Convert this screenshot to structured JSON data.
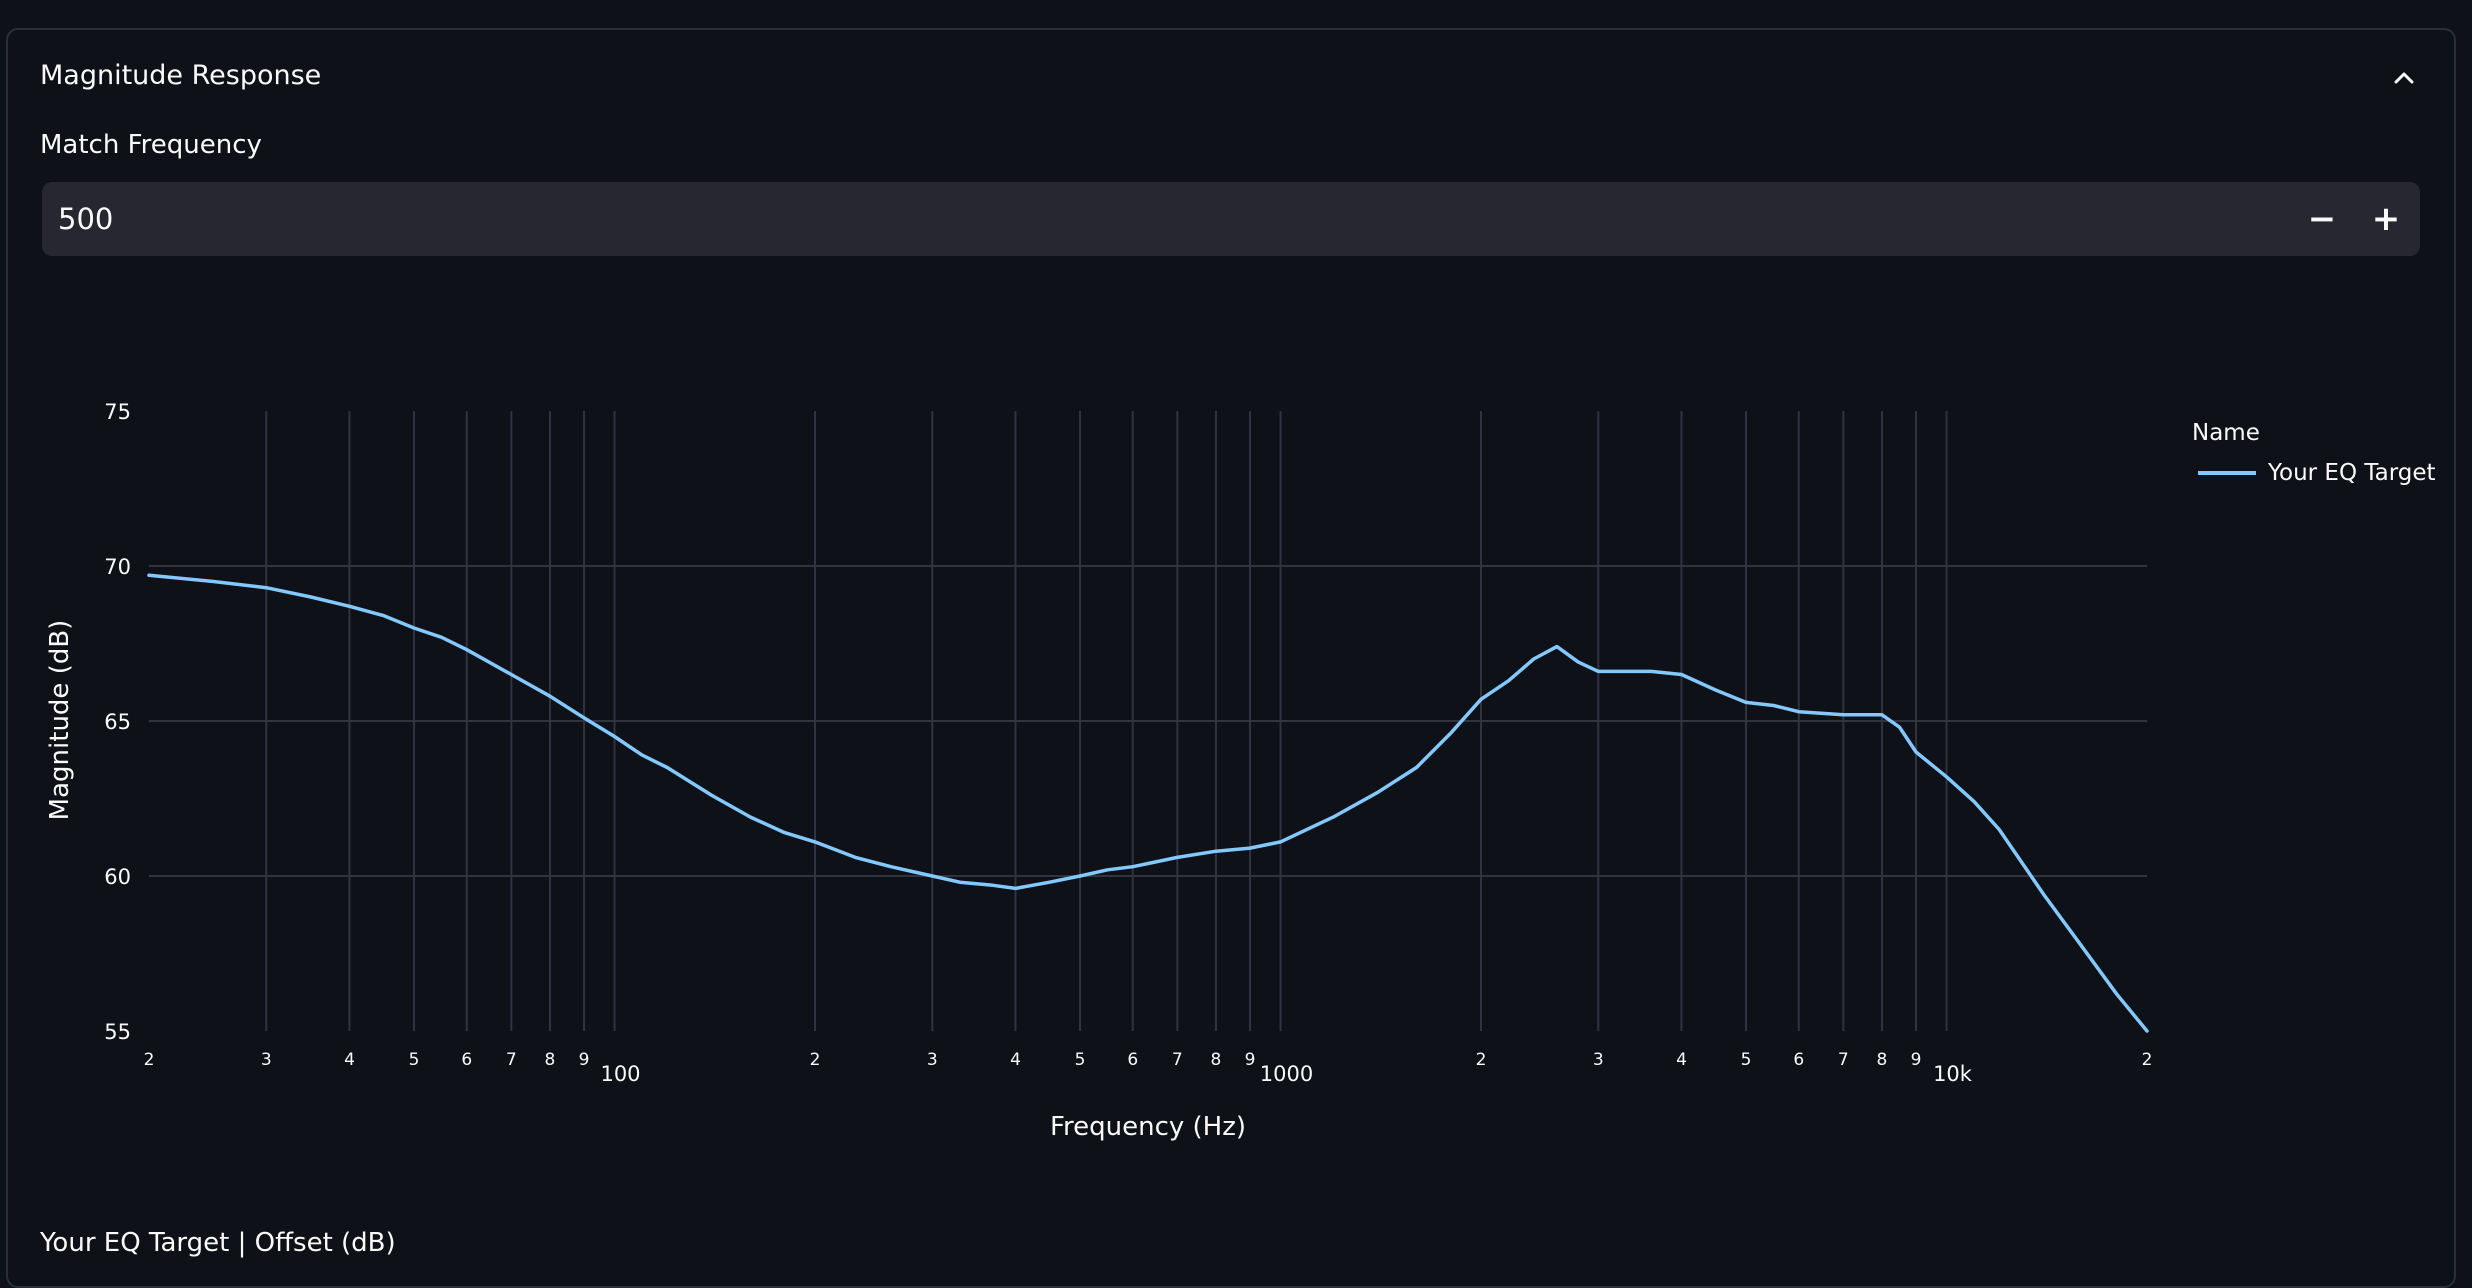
{
  "expander": {
    "title": "Magnitude Response"
  },
  "match_frequency": {
    "label": "Match Frequency",
    "value": "500",
    "minus_label": "−",
    "plus_label": "+"
  },
  "below_chart_label": "Your EQ Target | Offset (dB)",
  "colors": {
    "background": "#0e1117",
    "series": "#83c9ff",
    "grid": "#31333f",
    "input_bg": "#262730"
  },
  "chart_data": {
    "type": "line",
    "xscale": "log",
    "xlim": [
      20,
      20000
    ],
    "ylim": [
      55,
      75
    ],
    "xlabel": "Frequency (Hz)",
    "ylabel": "Magnitude (dB)",
    "y_ticks": [
      "55",
      "60",
      "65",
      "70",
      "75"
    ],
    "x_ticks": [
      {
        "v": 20,
        "label": "2"
      },
      {
        "v": 30,
        "label": "3"
      },
      {
        "v": 40,
        "label": "4"
      },
      {
        "v": 50,
        "label": "5"
      },
      {
        "v": 60,
        "label": "6"
      },
      {
        "v": 70,
        "label": "7"
      },
      {
        "v": 80,
        "label": "8"
      },
      {
        "v": 90,
        "label": "9"
      },
      {
        "v": 100,
        "label": "100",
        "major": true
      },
      {
        "v": 200,
        "label": "2"
      },
      {
        "v": 300,
        "label": "3"
      },
      {
        "v": 400,
        "label": "4"
      },
      {
        "v": 500,
        "label": "5"
      },
      {
        "v": 600,
        "label": "6"
      },
      {
        "v": 700,
        "label": "7"
      },
      {
        "v": 800,
        "label": "8"
      },
      {
        "v": 900,
        "label": "9"
      },
      {
        "v": 1000,
        "label": "1000",
        "major": true
      },
      {
        "v": 2000,
        "label": "2"
      },
      {
        "v": 3000,
        "label": "3"
      },
      {
        "v": 4000,
        "label": "4"
      },
      {
        "v": 5000,
        "label": "5"
      },
      {
        "v": 6000,
        "label": "6"
      },
      {
        "v": 7000,
        "label": "7"
      },
      {
        "v": 8000,
        "label": "8"
      },
      {
        "v": 9000,
        "label": "9"
      },
      {
        "v": 10000,
        "label": "10k",
        "major": true
      },
      {
        "v": 20000,
        "label": "2"
      }
    ],
    "legend_title": "Name",
    "legend_position": "right",
    "grid": true,
    "series": [
      {
        "name": "Your EQ Target",
        "color": "#83c9ff",
        "x": [
          20,
          25,
          30,
          35,
          40,
          45,
          50,
          55,
          60,
          70,
          80,
          90,
          100,
          110,
          120,
          140,
          160,
          180,
          200,
          230,
          260,
          300,
          330,
          370,
          400,
          450,
          500,
          550,
          600,
          700,
          800,
          900,
          1000,
          1200,
          1400,
          1600,
          1800,
          2000,
          2200,
          2400,
          2600,
          2800,
          3000,
          3300,
          3600,
          4000,
          4500,
          5000,
          5500,
          6000,
          7000,
          8000,
          8500,
          9000,
          10000,
          11000,
          12000,
          14000,
          16000,
          18000,
          20000
        ],
        "y": [
          69.7,
          69.5,
          69.3,
          69.0,
          68.7,
          68.4,
          68.0,
          67.7,
          67.3,
          66.5,
          65.8,
          65.1,
          64.5,
          63.9,
          63.5,
          62.6,
          61.9,
          61.4,
          61.1,
          60.6,
          60.3,
          60.0,
          59.8,
          59.7,
          59.6,
          59.8,
          60.0,
          60.2,
          60.3,
          60.6,
          60.8,
          60.9,
          61.1,
          61.9,
          62.7,
          63.5,
          64.6,
          65.7,
          66.3,
          67.0,
          67.4,
          66.9,
          66.6,
          66.6,
          66.6,
          66.5,
          66.0,
          65.6,
          65.5,
          65.3,
          65.2,
          65.2,
          64.8,
          64.0,
          63.2,
          62.4,
          61.5,
          59.4,
          57.7,
          56.2,
          55.0
        ]
      }
    ]
  }
}
